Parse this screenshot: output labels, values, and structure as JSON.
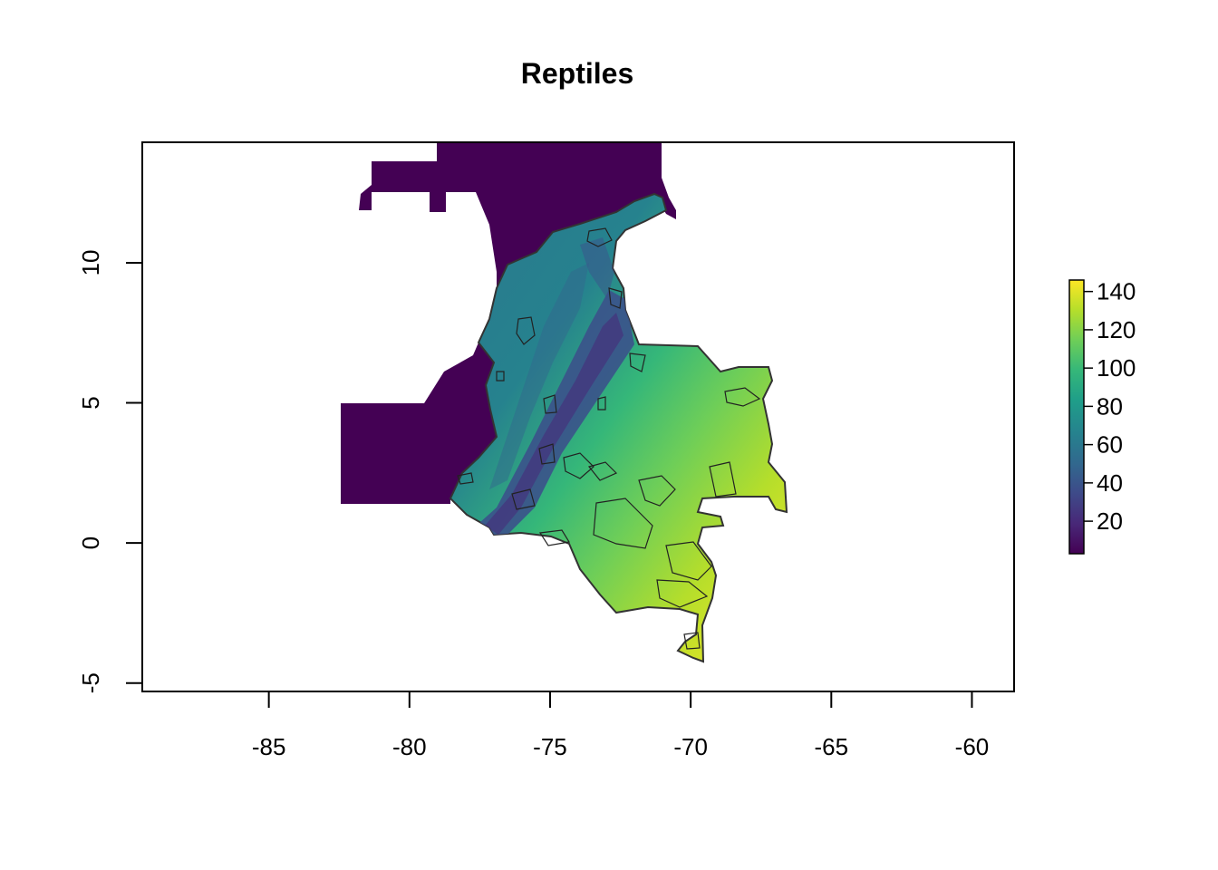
{
  "title": "Reptiles",
  "x_axis": {
    "ticks": [
      "-85",
      "-80",
      "-75",
      "-70",
      "-65",
      "-60"
    ],
    "range": [
      -89.5,
      -58.5
    ]
  },
  "y_axis": {
    "ticks": [
      "-5",
      "0",
      "5",
      "10"
    ],
    "range": [
      -5.3,
      14.3
    ]
  },
  "legend": {
    "ticks": [
      "20",
      "40",
      "60",
      "80",
      "100",
      "120",
      "140"
    ],
    "range": [
      3,
      146
    ],
    "colors": [
      "#440154",
      "#482878",
      "#3e4a89",
      "#31688e",
      "#26828e",
      "#1f9e89",
      "#35b779",
      "#6ece58",
      "#b5de2b",
      "#fde725"
    ],
    "placement": "right"
  },
  "colors": {
    "low_richness": "#440154",
    "caribbean": "#2a788e",
    "lowland": "#35b779",
    "amazon": "#d6e12f",
    "andes": "#3b528b",
    "outline": "#333333"
  }
}
